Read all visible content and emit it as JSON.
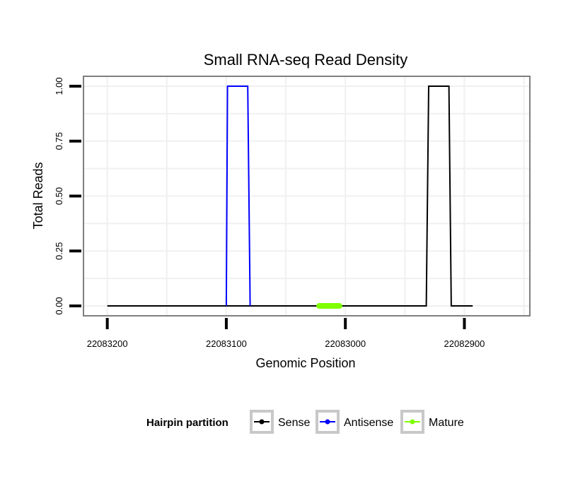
{
  "chart_data": {
    "type": "line",
    "title": "Small RNA-seq Read Density",
    "xlabel": "Genomic Position",
    "ylabel": "Total Reads",
    "x_reversed": true,
    "xlim": [
      22083220,
      22082845
    ],
    "ylim": [
      -0.045,
      1.045
    ],
    "x_ticks": [
      22083200,
      22083100,
      22083000,
      22082900
    ],
    "x_tick_labels": [
      "22083200",
      "22083100",
      "22083000",
      "22082900"
    ],
    "y_ticks": [
      0,
      0.25,
      0.5,
      0.75,
      1
    ],
    "y_tick_labels": [
      "0.00",
      "0.25",
      "0.50",
      "0.75",
      "1.00"
    ],
    "grid": true,
    "legend": {
      "title": "Hairpin partition",
      "position": "bottom",
      "entries": [
        "Sense",
        "Antisense",
        "Mature"
      ]
    },
    "series": [
      {
        "name": "Sense",
        "color": "#000000",
        "x": [
          22083200,
          22082932,
          22082930,
          22082913,
          22082911,
          22082893
        ],
        "y": [
          0,
          0,
          1,
          1,
          0,
          0
        ]
      },
      {
        "name": "Antisense",
        "color": "#0000ff",
        "x": [
          22083100,
          22083099,
          22083082,
          22083080
        ],
        "y": [
          0,
          1,
          1,
          0
        ]
      },
      {
        "name": "Mature",
        "color": "#7fff00",
        "x": [
          22083022,
          22083005
        ],
        "y": [
          0,
          0
        ]
      }
    ]
  }
}
